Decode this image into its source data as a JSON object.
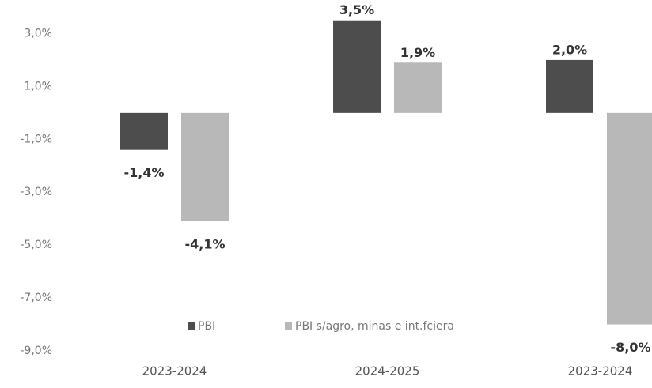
{
  "chart_data": {
    "type": "bar",
    "categories": [
      "2023-2024",
      "2024-2025",
      "2023-2024"
    ],
    "series": [
      {
        "name": "PBI",
        "color": "#4d4d4d",
        "values": [
          -1.4,
          3.5,
          2.0
        ],
        "value_labels": [
          "-1,4%",
          "3,5%",
          "2,0%"
        ]
      },
      {
        "name": "PBI s/agro, minas e int.fciera",
        "color": "#b8b8b8",
        "values": [
          -4.1,
          1.9,
          -8.0
        ],
        "value_labels": [
          "-4,1%",
          "1,9%",
          "-8,0%"
        ]
      }
    ],
    "ylim": [
      -9,
      4
    ],
    "yticks": [
      {
        "value": 3,
        "label": "3,0%"
      },
      {
        "value": 1,
        "label": "1,0%"
      },
      {
        "value": -1,
        "label": "-1,0%"
      },
      {
        "value": -3,
        "label": "-3,0%"
      },
      {
        "value": -5,
        "label": "-5,0%"
      },
      {
        "value": -7,
        "label": "-7,0%"
      },
      {
        "value": -9,
        "label": "-9,0%"
      }
    ],
    "grid": false,
    "legend": "bottom"
  }
}
